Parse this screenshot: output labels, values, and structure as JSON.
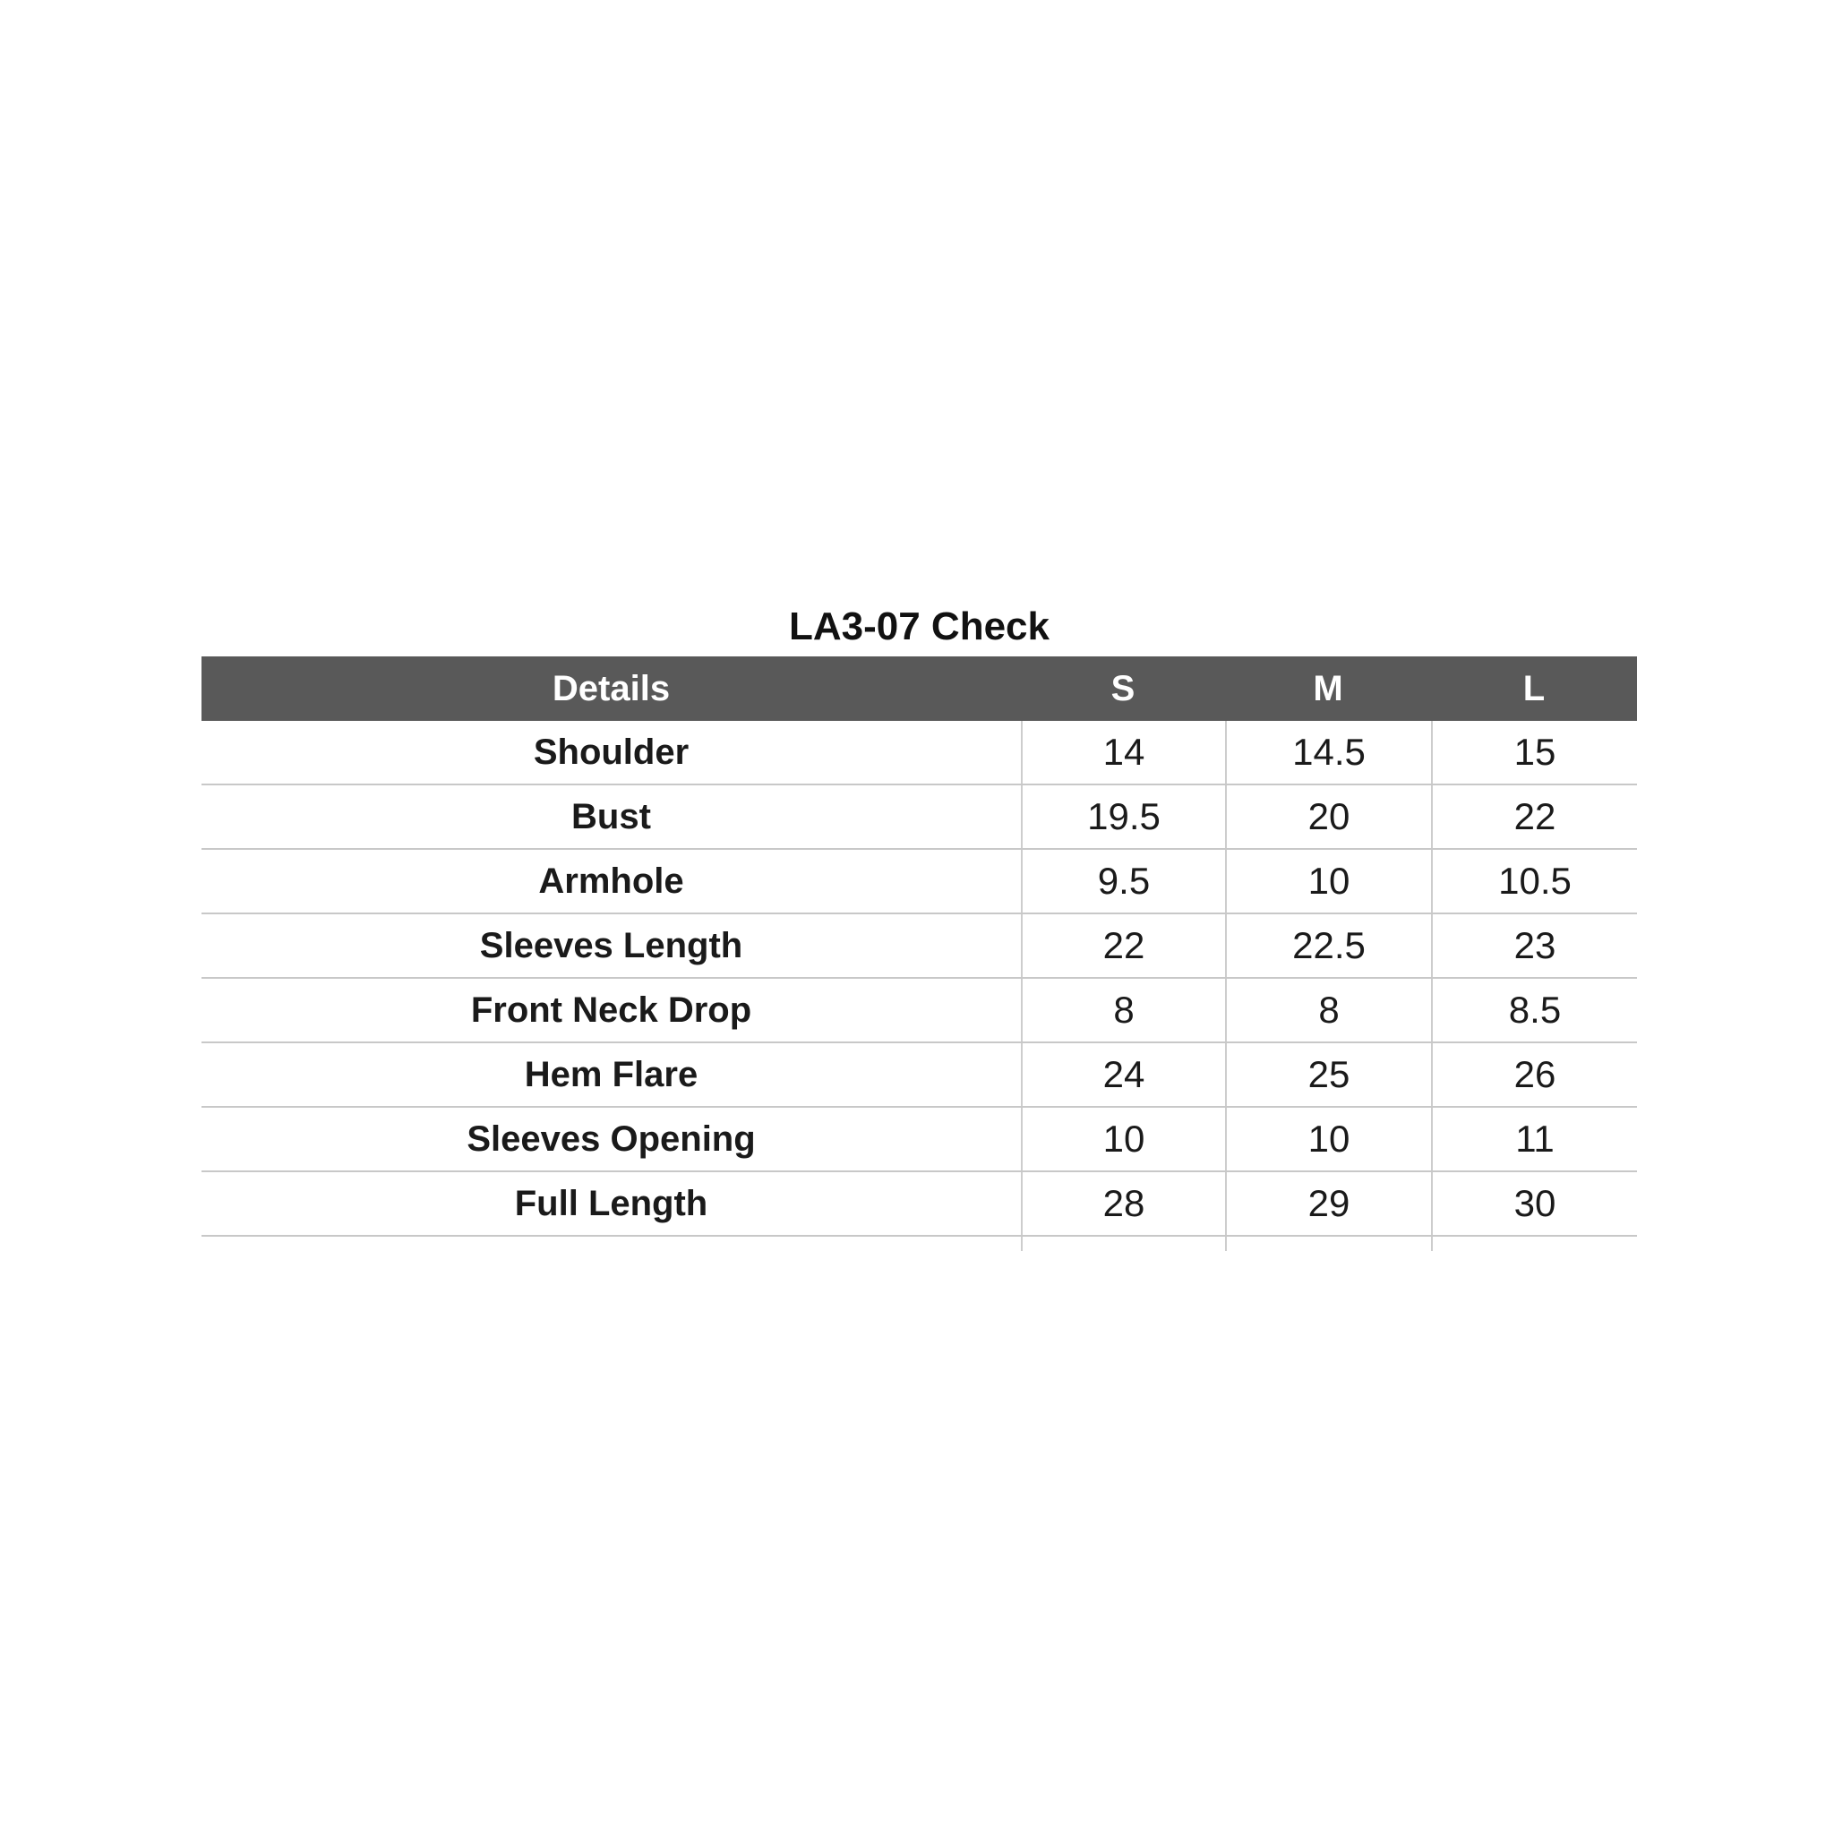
{
  "title": "LA3-07 Check",
  "chart_data": {
    "type": "table",
    "title": "LA3-07 Check",
    "columns": [
      "Details",
      "S",
      "M",
      "L"
    ],
    "rows": [
      {
        "label": "Shoulder",
        "values": [
          "14",
          "14.5",
          "15"
        ]
      },
      {
        "label": "Bust",
        "values": [
          "19.5",
          "20",
          "22"
        ]
      },
      {
        "label": "Armhole",
        "values": [
          "9.5",
          "10",
          "10.5"
        ]
      },
      {
        "label": "Sleeves Length",
        "values": [
          "22",
          "22.5",
          "23"
        ]
      },
      {
        "label": "Front Neck Drop",
        "values": [
          "8",
          "8",
          "8.5"
        ]
      },
      {
        "label": "Hem Flare",
        "values": [
          "24",
          "25",
          "26"
        ]
      },
      {
        "label": "Sleeves Opening",
        "values": [
          "10",
          "10",
          "11"
        ]
      },
      {
        "label": "Full Length",
        "values": [
          "28",
          "29",
          "30"
        ]
      }
    ],
    "layout_hints": {
      "header_style": "solid dark band, no internal dividers",
      "gridlines": "light gray horizontal separators full width; vertical dividers only between value columns",
      "alignment": "all cells center-aligned"
    }
  },
  "colors": {
    "header_bg": "#595959",
    "header_text": "#ffffff",
    "row_text": "#1a1a1a",
    "grid_line": "#c8c8c8",
    "grid_line_v": "#cdcdcd",
    "page_bg": "#ffffff"
  }
}
